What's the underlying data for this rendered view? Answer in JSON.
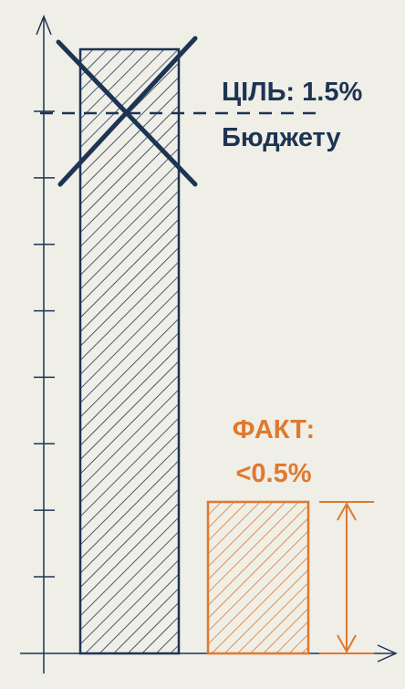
{
  "colors": {
    "background": "#efeee7",
    "navy": "#1d3452",
    "orange": "#e0792d"
  },
  "chart_data": {
    "type": "bar",
    "title": "",
    "xlabel": "",
    "ylabel": "",
    "grid": false,
    "axis_ticks": 8,
    "categories": [
      "",
      ""
    ],
    "series": [
      {
        "values": [
          1.5,
          0.5
        ]
      }
    ],
    "bars": [
      {
        "value": 1.5,
        "color": "#1d3452",
        "crossed_out": true,
        "marker": "target-line"
      },
      {
        "value": 0.5,
        "color": "#e0792d",
        "crossed_out": false,
        "marker": "height-arrow"
      }
    ],
    "annotations": {
      "target_line1": "ЦІЛЬ: 1.5%",
      "target_line2": "Бюджету",
      "actual_line1": "ФАКТ:",
      "actual_line2": "<0.5%"
    }
  }
}
